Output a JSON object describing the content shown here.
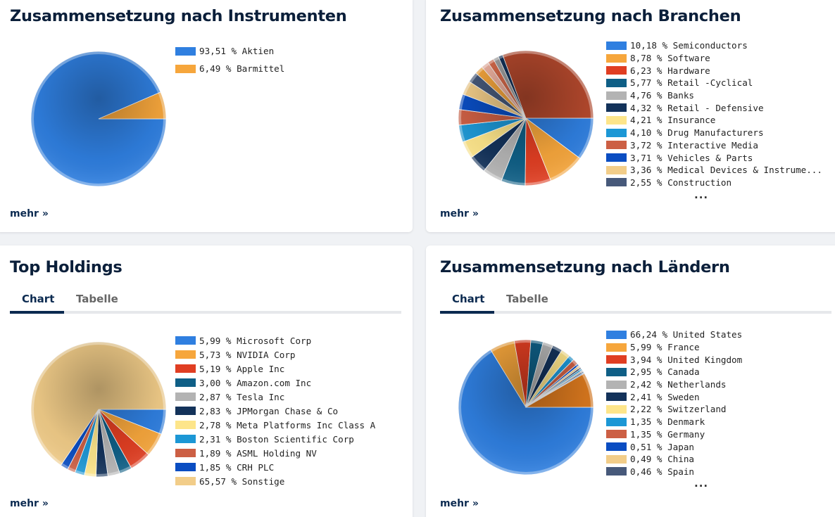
{
  "colors": [
    "#2f7fe0",
    "#f6a63c",
    "#e03e22",
    "#0f5f86",
    "#b3b3b3",
    "#13325a",
    "#fde58a",
    "#1c97d5",
    "#cc5f44",
    "#0a4dc2",
    "#f2cd89",
    "#47597a"
  ],
  "instruments": {
    "title": "Zusammensetzung nach Instrumenten",
    "mehr": "mehr »",
    "chart_data": {
      "type": "pie",
      "labels": [
        "Aktien",
        "Barmittel"
      ],
      "display": [
        "93,51 % Aktien",
        "6,49 % Barmittel"
      ],
      "values": [
        93.51,
        6.49
      ]
    }
  },
  "branches": {
    "title": "Zusammensetzung nach Branchen",
    "mehr": "mehr »",
    "ellipsis": "...",
    "chart_data": {
      "type": "pie",
      "labels": [
        "Semiconductors",
        "Software",
        "Hardware",
        "Retail -Cyclical",
        "Banks",
        "Retail - Defensive",
        "Insurance",
        "Drug Manufacturers",
        "Interactive Media",
        "Vehicles & Parts",
        "Medical Devices & Instrume...",
        "Construction"
      ],
      "display": [
        "10,18 % Semiconductors",
        "8,78 % Software",
        "6,23 % Hardware",
        "5,77 % Retail -Cyclical",
        "4,76 % Banks",
        "4,32 % Retail - Defensive",
        "4,21 % Insurance",
        "4,10 % Drug Manufacturers",
        "3,72 % Interactive Media",
        "3,71 % Vehicles & Parts",
        "3,36 % Medical Devices & Instrume...",
        "2,55 % Construction"
      ],
      "values": [
        10.18,
        8.78,
        6.23,
        5.77,
        4.76,
        4.32,
        4.21,
        4.1,
        3.72,
        3.71,
        3.36,
        2.55
      ],
      "pie_extra_values": [
        2.0,
        1.8,
        1.5,
        1.3,
        1.1
      ],
      "pie_extra_colors": [
        "#f6a63c",
        "#f2b5a3",
        "#d96b4b",
        "#a0a0a0",
        "#13325a"
      ],
      "remainder_color": "#b5492d"
    }
  },
  "holdings": {
    "title": "Top Holdings",
    "tabs": [
      "Chart",
      "Tabelle"
    ],
    "mehr": "mehr »",
    "chart_data": {
      "type": "pie",
      "labels": [
        "Microsoft Corp",
        "NVIDIA Corp",
        "Apple Inc",
        "Amazon.com Inc",
        "Tesla Inc",
        "JPMorgan Chase & Co",
        "Meta Platforms Inc Class A",
        "Boston Scientific Corp",
        "ASML Holding NV",
        "CRH PLC",
        "Sonstige"
      ],
      "display": [
        "5,99 % Microsoft Corp",
        "5,73 % NVIDIA Corp",
        "5,19 % Apple Inc",
        "3,00 % Amazon.com Inc",
        "2,87 % Tesla Inc",
        "2,83 % JPMorgan Chase & Co",
        "2,78 % Meta Platforms Inc Class A",
        "2,31 % Boston Scientific Corp",
        "1,89 % ASML Holding NV",
        "1,85 % CRH PLC",
        "65,57 % Sonstige"
      ],
      "values": [
        5.99,
        5.73,
        5.19,
        3.0,
        2.87,
        2.83,
        2.78,
        2.31,
        1.89,
        1.85,
        65.57
      ]
    }
  },
  "countries": {
    "title": "Zusammensetzung nach Ländern",
    "tabs": [
      "Chart",
      "Tabelle"
    ],
    "mehr": "mehr »",
    "ellipsis": "...",
    "chart_data": {
      "type": "pie",
      "labels": [
        "United States",
        "France",
        "United Kingdom",
        "Canada",
        "Netherlands",
        "Sweden",
        "Switzerland",
        "Denmark",
        "Germany",
        "Japan",
        "China",
        "Spain"
      ],
      "display": [
        "66,24 % United States",
        "5,99 % France",
        "3,94 % United Kingdom",
        "2,95 % Canada",
        "2,42 % Netherlands",
        "2,41 % Sweden",
        "2,22 % Switzerland",
        "1,35 % Denmark",
        "1,35 % Germany",
        "0,51 % Japan",
        "0,49 % China",
        "0,46 % Spain"
      ],
      "values": [
        66.24,
        5.99,
        3.94,
        2.95,
        2.42,
        2.41,
        2.22,
        1.35,
        1.35,
        0.51,
        0.49,
        0.46
      ],
      "pie_extra_values": [
        0.4,
        0.35,
        0.3,
        0.25
      ],
      "pie_extra_colors": [
        "#1c97d5",
        "#b3b3b3",
        "#13325a",
        "#2f7fe0"
      ],
      "remainder_color": "#d9781e"
    }
  }
}
